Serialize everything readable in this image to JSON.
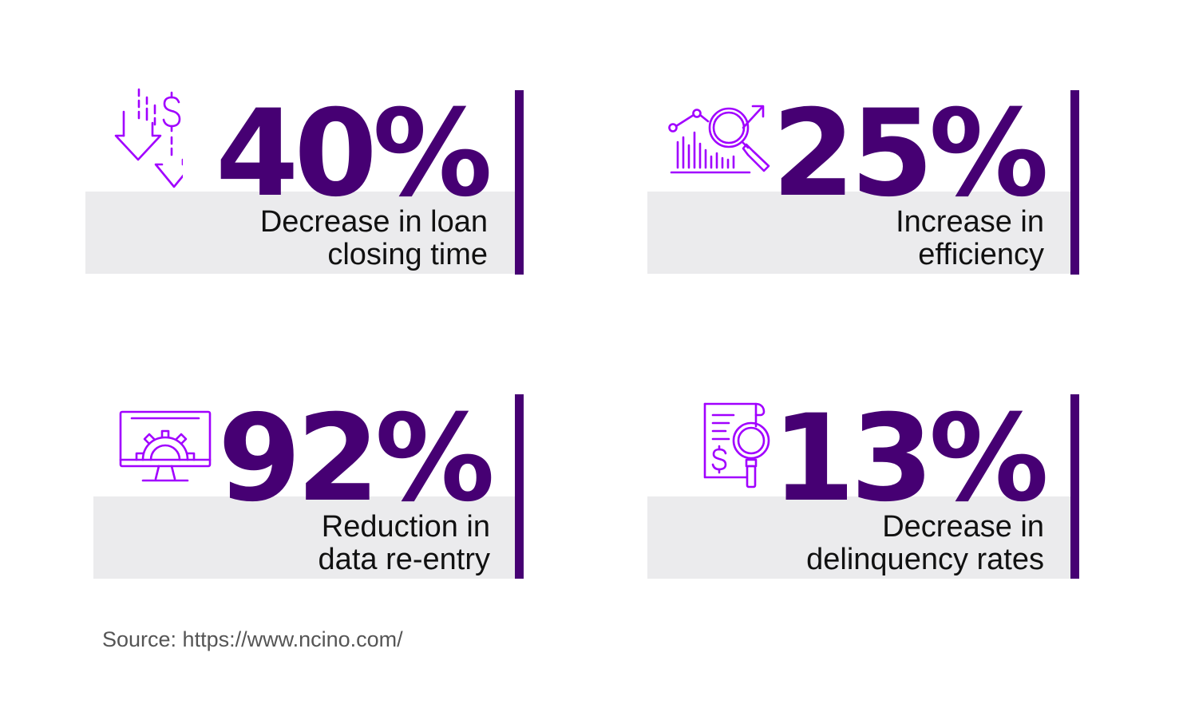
{
  "colors": {
    "accent": "#460073",
    "icon": "#a100ff",
    "band": "#ebebed",
    "text": "#111111",
    "source_text": "#555555"
  },
  "stats": [
    {
      "value": "40%",
      "line1": "Decrease in loan",
      "line2": "closing time",
      "icon": "down-arrows-dollar-icon"
    },
    {
      "value": "25%",
      "line1": "Increase in",
      "line2": "efficiency",
      "icon": "analytics-magnifier-icon"
    },
    {
      "value": "92%",
      "line1": "Reduction in",
      "line2": "data re-entry",
      "icon": "monitor-gear-icon"
    },
    {
      "value": "13%",
      "line1": "Decrease in",
      "line2": "delinquency rates",
      "icon": "document-dollar-search-icon"
    }
  ],
  "source": "Source: https://www.ncino.com/"
}
